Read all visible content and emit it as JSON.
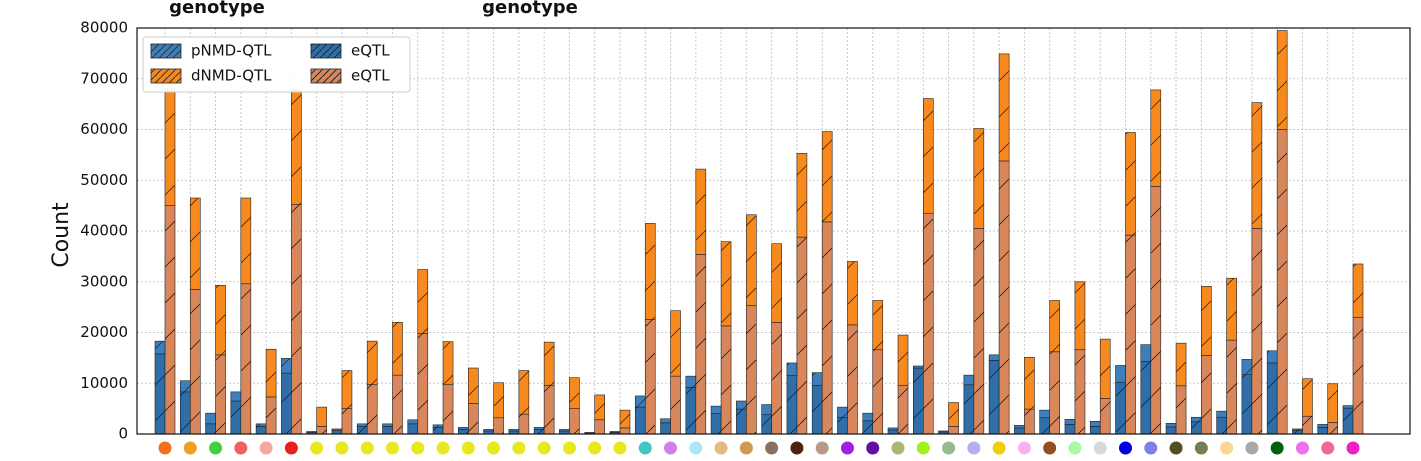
{
  "chart_data": {
    "type": "stacked_grouped_bar",
    "annotations": [
      "genotype",
      "genotype"
    ],
    "ylabel": "Count",
    "ylim": [
      0,
      80000
    ],
    "yticks": [
      0,
      10000,
      20000,
      30000,
      40000,
      50000,
      60000,
      70000,
      80000
    ],
    "grid": true,
    "legend": "upper left",
    "categories": [
      null,
      null,
      null,
      null,
      null,
      null,
      null,
      null,
      null,
      null,
      null,
      null,
      null,
      null,
      null,
      null,
      null,
      null,
      null,
      null,
      null,
      null,
      null,
      null,
      null,
      null,
      null,
      null,
      null,
      null,
      null,
      null,
      null,
      null,
      null,
      null,
      null,
      null,
      null,
      null,
      null,
      null,
      null,
      null,
      null,
      null,
      null,
      null
    ],
    "category_colors": [
      "#f07020",
      "#f0a020",
      "#40d040",
      "#f06060",
      "#f4a8a0",
      "#e82020",
      "#e8e820",
      "#e8e820",
      "#e8e820",
      "#e8e820",
      "#e8e820",
      "#e8e820",
      "#e8e820",
      "#e8e820",
      "#e8e820",
      "#e8e820",
      "#e8e820",
      "#e8e820",
      "#e8e820",
      "#40c8c0",
      "#d080e8",
      "#a8e8f8",
      "#e8b880",
      "#d09850",
      "#8a7060",
      "#502010",
      "#b89888",
      "#a020e0",
      "#6010a0",
      "#a8b870",
      "#a0f020",
      "#98b890",
      "#b0b0f0",
      "#f0d000",
      "#f8b0f0",
      "#905020",
      "#a8f8a8",
      "#d8d8d8",
      "#0000e0",
      "#8080e8",
      "#505020",
      "#708050",
      "#f8d890",
      "#a8a8a8",
      "#006010",
      "#f070f0",
      "#f06898",
      "#f020c0"
    ],
    "series": [
      {
        "name": "pNMD-QTL",
        "color": "#3d7fbd",
        "group": 0,
        "level": 1,
        "values": [
          2500,
          2200,
          2100,
          1800,
          500,
          2900,
          200,
          300,
          500,
          500,
          800,
          500,
          400,
          300,
          300,
          400,
          300,
          100,
          200,
          2200,
          800,
          2200,
          1500,
          1600,
          2000,
          2500,
          2500,
          2000,
          1500,
          400,
          400,
          200,
          1900,
          1100,
          500,
          1500,
          1000,
          1000,
          3300,
          3300,
          700,
          900,
          1200,
          3000,
          2400,
          300,
          600,
          500
        ]
      },
      {
        "name": "dNMD-QTL",
        "color": "#f7891f",
        "group": 1,
        "level": 1,
        "values": [
          23000,
          18000,
          13700,
          16900,
          9400,
          22600,
          3800,
          7500,
          8500,
          10400,
          12600,
          8400,
          7000,
          6900,
          8600,
          8500,
          6100,
          4900,
          3500,
          18900,
          12900,
          16800,
          16600,
          17900,
          15500,
          16500,
          17800,
          12500,
          9700,
          9900,
          22600,
          4700,
          19700,
          21100,
          10200,
          10100,
          13400,
          11700,
          20200,
          19000,
          8400,
          13600,
          12200,
          24800,
          19500,
          7400,
          7600,
          10500
        ]
      },
      {
        "name": "eQTL",
        "color": "#2f6ea8",
        "group": 0,
        "level": 0,
        "values": [
          15800,
          8300,
          2000,
          6500,
          1500,
          12000,
          300,
          700,
          1500,
          1500,
          2000,
          1300,
          900,
          600,
          600,
          900,
          600,
          200,
          300,
          5300,
          2200,
          9200,
          4000,
          4900,
          3800,
          11500,
          9600,
          3300,
          2600,
          800,
          13000,
          400,
          9700,
          14500,
          1200,
          3200,
          1900,
          1500,
          10200,
          14300,
          1400,
          2400,
          3300,
          11700,
          14000,
          700,
          1300,
          5100
        ]
      },
      {
        "name": "eQTL",
        "color": "#d9875a",
        "group": 1,
        "level": 0,
        "values": [
          45000,
          28500,
          15600,
          29600,
          7300,
          45200,
          1500,
          5000,
          9800,
          11600,
          19800,
          9800,
          6000,
          3200,
          3900,
          9600,
          5000,
          2800,
          1200,
          22600,
          11400,
          35400,
          21300,
          25300,
          22000,
          38800,
          41800,
          21500,
          16600,
          9600,
          43500,
          1500,
          40500,
          53800,
          4900,
          16200,
          16600,
          7000,
          39200,
          48800,
          9500,
          15500,
          18500,
          40500,
          60000,
          3500,
          2300,
          23000
        ]
      }
    ]
  }
}
